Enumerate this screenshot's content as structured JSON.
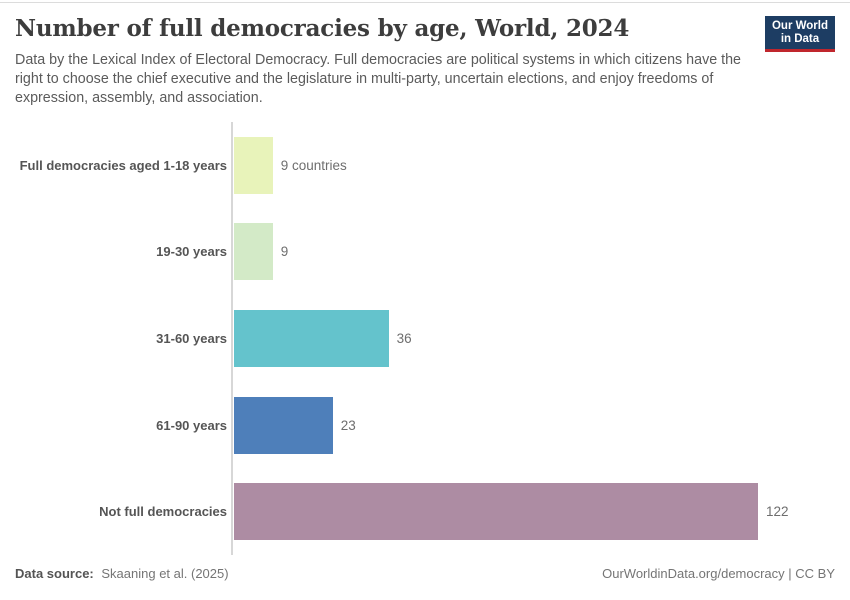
{
  "header": {
    "subtitle": "Data by the Lexical Index of Electoral Democracy. Full democracies are political systems in which citizens have the right to choose the chief executive and the legislature in multi-party, uncertain elections, and enjoy freedoms of expression, assembly, and association.",
    "logo": {
      "line1": "Our World",
      "line2": "in Data",
      "bg_color": "#1d3d63",
      "accent_color": "#c0262d"
    }
  },
  "chart_data": {
    "type": "bar",
    "orientation": "horizontal",
    "title": "Number of full democracies by age, World, 2024",
    "categories": [
      "Full democracies aged 1-18 years",
      "19-30 years",
      "31-60 years",
      "61-90 years",
      "Not full democracies"
    ],
    "values": [
      9,
      9,
      36,
      23,
      122
    ],
    "value_labels": [
      "9 countries",
      "9",
      "36",
      "23",
      "122"
    ],
    "colors": [
      "#e8f3ba",
      "#d3eac7",
      "#64c3cc",
      "#4e7fba",
      "#ad8ca3"
    ],
    "unit": "countries",
    "xlabel": "",
    "ylabel": "",
    "xlim": [
      0,
      122
    ],
    "grid": false,
    "legend": "none",
    "axis_color": "#d7d7d7"
  },
  "footer": {
    "source_label": "Data source:",
    "source_value": "Skaaning et al. (2025)",
    "link_text": "OurWorldinData.org/democracy | CC BY"
  }
}
